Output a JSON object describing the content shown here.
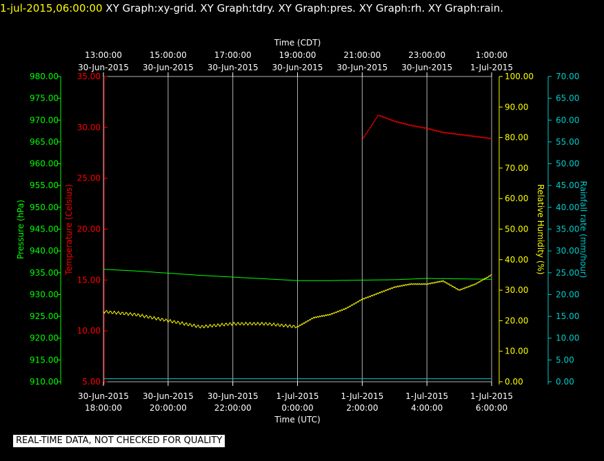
{
  "header": {
    "timestamp": "1-jul-2015,06:00:00",
    "description": "  XY Graph:xy-grid.  XY Graph:tdry.  XY Graph:pres.  XY Graph:rh.  XY Graph:rain."
  },
  "footer": {
    "notice": "REAL-TIME DATA, NOT CHECKED FOR QUALITY"
  },
  "colors": {
    "temperature": "#ff0000",
    "pressure": "#00ff00",
    "humidity": "#ffff00",
    "rainfall": "#00cccc",
    "grid": "#ffffff"
  },
  "chart_data": {
    "type": "line",
    "x_axis_bottom": {
      "label": "Time (UTC)",
      "unit": "hours",
      "range": [
        0,
        12
      ],
      "ticks": [
        {
          "x": 0,
          "line1": "30-Jun-2015",
          "line2": "18:00:00"
        },
        {
          "x": 2,
          "line1": "30-Jun-2015",
          "line2": "20:00:00"
        },
        {
          "x": 4,
          "line1": "30-Jun-2015",
          "line2": "22:00:00"
        },
        {
          "x": 6,
          "line1": "1-Jul-2015",
          "line2": "0:00:00"
        },
        {
          "x": 8,
          "line1": "1-Jul-2015",
          "line2": "2:00:00"
        },
        {
          "x": 10,
          "line1": "1-Jul-2015",
          "line2": "4:00:00"
        },
        {
          "x": 12,
          "line1": "1-Jul-2015",
          "line2": "6:00:00"
        }
      ]
    },
    "x_axis_top": {
      "label": "Time (CDT)",
      "ticks": [
        {
          "x": 0,
          "line1": "13:00:00",
          "line2": "30-Jun-2015"
        },
        {
          "x": 2,
          "line1": "15:00:00",
          "line2": "30-Jun-2015"
        },
        {
          "x": 4,
          "line1": "17:00:00",
          "line2": "30-Jun-2015"
        },
        {
          "x": 6,
          "line1": "19:00:00",
          "line2": "30-Jun-2015"
        },
        {
          "x": 8,
          "line1": "21:00:00",
          "line2": "30-Jun-2015"
        },
        {
          "x": 10,
          "line1": "23:00:00",
          "line2": "30-Jun-2015"
        },
        {
          "x": 12,
          "line1": "1:00:00",
          "line2": "1-Jul-2015"
        }
      ]
    },
    "y_axes": [
      {
        "id": "pressure",
        "label": "Pressure (hPa)",
        "range": [
          910,
          980
        ],
        "ticks": [
          "910.00",
          "915.00",
          "920.00",
          "925.00",
          "930.00",
          "935.00",
          "940.00",
          "945.00",
          "950.00",
          "955.00",
          "960.00",
          "965.00",
          "970.00",
          "975.00",
          "980.00"
        ]
      },
      {
        "id": "temperature",
        "label": "Temperature (Celsius)",
        "range": [
          5,
          35
        ],
        "ticks": [
          "5.00",
          "10.00",
          "15.00",
          "20.00",
          "25.00",
          "30.00",
          "35.00"
        ]
      },
      {
        "id": "humidity",
        "label": "Relative Humidity (%)",
        "range": [
          0,
          100
        ],
        "ticks": [
          "0.00",
          "10.00",
          "20.00",
          "30.00",
          "40.00",
          "50.00",
          "60.00",
          "70.00",
          "80.00",
          "90.00",
          "100.00"
        ]
      },
      {
        "id": "rainfall",
        "label": "Rainfall rate (mm/hour)",
        "range": [
          0,
          70
        ],
        "ticks": [
          "0.00",
          "5.00",
          "10.00",
          "15.00",
          "20.00",
          "25.00",
          "30.00",
          "35.00",
          "40.00",
          "45.00",
          "50.00",
          "55.00",
          "60.00",
          "65.00",
          "70.00"
        ]
      }
    ],
    "grid": true,
    "series": [
      {
        "id": "temperature",
        "axis": "temperature",
        "x": [
          8,
          8.5,
          9,
          9.5,
          10,
          10.5,
          11,
          11.5,
          12
        ],
        "y": [
          28.8,
          31.2,
          30.6,
          30.2,
          29.9,
          29.5,
          29.3,
          29.1,
          28.9
        ]
      },
      {
        "id": "pressure",
        "axis": "pressure",
        "x": [
          0,
          1,
          2,
          3,
          4,
          5,
          6,
          7,
          8,
          9,
          10,
          11,
          12
        ],
        "y": [
          935.8,
          935.4,
          934.9,
          934.4,
          934.0,
          933.6,
          933.2,
          933.2,
          933.3,
          933.4,
          933.7,
          933.6,
          933.5
        ]
      },
      {
        "id": "humidity",
        "axis": "humidity",
        "x": [
          0,
          1,
          2,
          3,
          4,
          5,
          6,
          6.5,
          7,
          7.5,
          8,
          8.5,
          9,
          9.5,
          10,
          10.5,
          11,
          11.5,
          12
        ],
        "y": [
          23,
          22,
          20,
          18,
          19,
          19,
          18,
          21,
          22,
          24,
          27,
          29,
          31,
          32,
          32,
          33,
          30,
          32,
          35
        ]
      },
      {
        "id": "rainfall",
        "axis": "rainfall",
        "x": [
          0,
          12
        ],
        "y": [
          0.7,
          0.7
        ]
      }
    ]
  }
}
